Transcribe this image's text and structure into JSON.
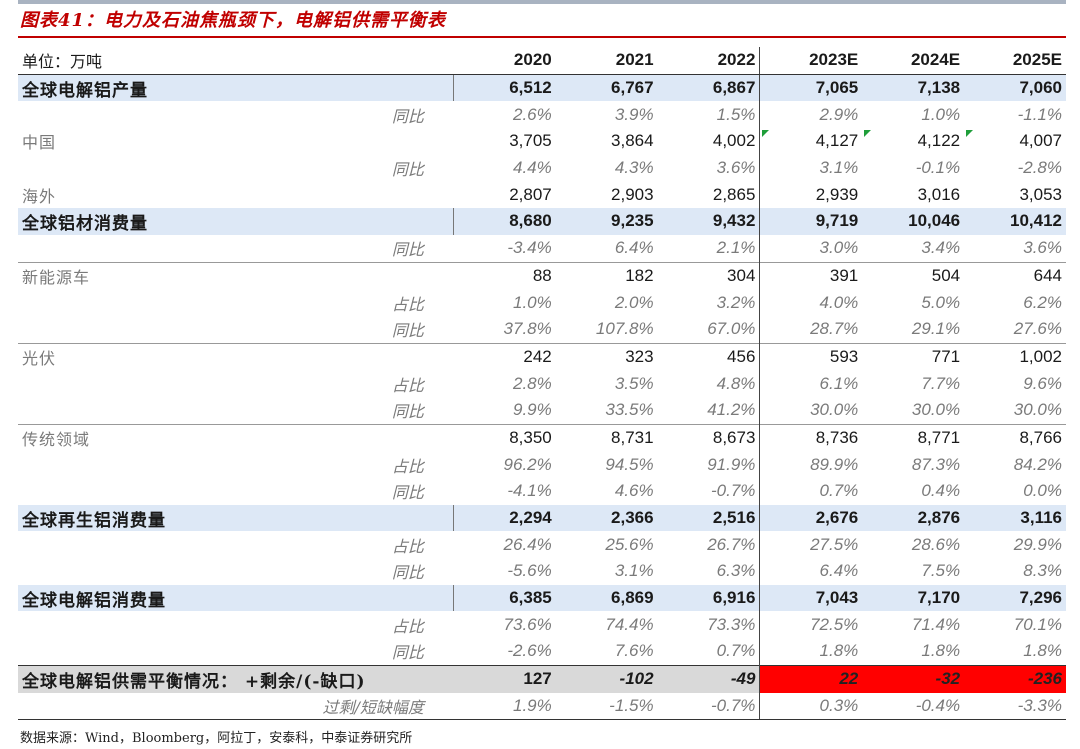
{
  "title": "图表41：电力及石油焦瓶颈下，电解铝供需平衡表",
  "header": {
    "unit": "单位：万吨",
    "years": [
      "2020",
      "2021",
      "2022",
      "2023E",
      "2024E",
      "2025E"
    ]
  },
  "rows": [
    {
      "label": "全球电解铝产量",
      "type": "major",
      "values": [
        "6,512",
        "6,767",
        "6,867",
        "7,065",
        "7,138",
        "7,060"
      ]
    },
    {
      "label": "同比",
      "type": "sub",
      "values": [
        "2.6%",
        "3.9%",
        "1.5%",
        "2.9%",
        "1.0%",
        "-1.1%"
      ]
    },
    {
      "label": "中国",
      "type": "cat",
      "values": [
        "3,705",
        "3,864",
        "4,002",
        "4,127",
        "4,122",
        "4,007"
      ]
    },
    {
      "label": "同比",
      "type": "sub",
      "values": [
        "4.4%",
        "4.3%",
        "3.6%",
        "3.1%",
        "-0.1%",
        "-2.8%"
      ]
    },
    {
      "label": "海外",
      "type": "cat",
      "values": [
        "2,807",
        "2,903",
        "2,865",
        "2,939",
        "3,016",
        "3,053"
      ]
    },
    {
      "label": "全球铝材消费量",
      "type": "major",
      "values": [
        "8,680",
        "9,235",
        "9,432",
        "9,719",
        "10,046",
        "10,412"
      ]
    },
    {
      "label": "同比",
      "type": "sub",
      "values": [
        "-3.4%",
        "6.4%",
        "2.1%",
        "3.0%",
        "3.4%",
        "3.6%"
      ]
    },
    {
      "label": "新能源车",
      "type": "cat",
      "top": true,
      "values": [
        "88",
        "182",
        "304",
        "391",
        "504",
        "644"
      ]
    },
    {
      "label": "占比",
      "type": "sub",
      "values": [
        "1.0%",
        "2.0%",
        "3.2%",
        "4.0%",
        "5.0%",
        "6.2%"
      ]
    },
    {
      "label": "同比",
      "type": "sub",
      "values": [
        "37.8%",
        "107.8%",
        "67.0%",
        "28.7%",
        "29.1%",
        "27.6%"
      ]
    },
    {
      "label": "光伏",
      "type": "cat",
      "top": true,
      "values": [
        "242",
        "323",
        "456",
        "593",
        "771",
        "1,002"
      ]
    },
    {
      "label": "占比",
      "type": "sub",
      "values": [
        "2.8%",
        "3.5%",
        "4.8%",
        "6.1%",
        "7.7%",
        "9.6%"
      ]
    },
    {
      "label": "同比",
      "type": "sub",
      "values": [
        "9.9%",
        "33.5%",
        "41.2%",
        "30.0%",
        "30.0%",
        "30.0%"
      ]
    },
    {
      "label": "传统领域",
      "type": "cat",
      "top": true,
      "values": [
        "8,350",
        "8,731",
        "8,673",
        "8,736",
        "8,771",
        "8,766"
      ]
    },
    {
      "label": "占比",
      "type": "sub",
      "values": [
        "96.2%",
        "94.5%",
        "91.9%",
        "89.9%",
        "87.3%",
        "84.2%"
      ]
    },
    {
      "label": "同比",
      "type": "sub",
      "values": [
        "-4.1%",
        "4.6%",
        "-0.7%",
        "0.7%",
        "0.4%",
        "0.0%"
      ]
    },
    {
      "label": "全球再生铝消费量",
      "type": "major",
      "values": [
        "2,294",
        "2,366",
        "2,516",
        "2,676",
        "2,876",
        "3,116"
      ]
    },
    {
      "label": "占比",
      "type": "sub",
      "values": [
        "26.4%",
        "25.6%",
        "26.7%",
        "27.5%",
        "28.6%",
        "29.9%"
      ]
    },
    {
      "label": "同比",
      "type": "sub",
      "values": [
        "-5.6%",
        "3.1%",
        "6.3%",
        "6.4%",
        "7.5%",
        "8.3%"
      ]
    },
    {
      "label": "全球电解铝消费量",
      "type": "major",
      "values": [
        "6,385",
        "6,869",
        "6,916",
        "7,043",
        "7,170",
        "7,296"
      ]
    },
    {
      "label": "占比",
      "type": "sub",
      "values": [
        "73.6%",
        "74.4%",
        "73.3%",
        "72.5%",
        "71.4%",
        "70.1%"
      ]
    },
    {
      "label": "同比",
      "type": "sub",
      "values": [
        "-2.6%",
        "7.6%",
        "0.7%",
        "1.8%",
        "1.8%",
        "1.8%"
      ]
    },
    {
      "label": "全球电解铝供需平衡情况：  +剩余/(-缺口)",
      "type": "balance",
      "values": [
        "127",
        "-102",
        "-49",
        "22",
        "-32",
        "-236"
      ]
    },
    {
      "label": "过剩/短缺幅度",
      "type": "sub",
      "last": true,
      "values": [
        "1.9%",
        "-1.5%",
        "-0.7%",
        "0.3%",
        "-0.4%",
        "-3.3%"
      ]
    }
  ],
  "colors": {
    "title_red": "#c00000",
    "major_row_bg": "#dde8f6",
    "balance_row_bg": "#d9d9d9",
    "deficit_highlight": "#ff0000",
    "flag_green": "#1f9e3a"
  },
  "source": "数据来源：Wind，Bloomberg，阿拉丁，安泰科，中泰证券研究所"
}
